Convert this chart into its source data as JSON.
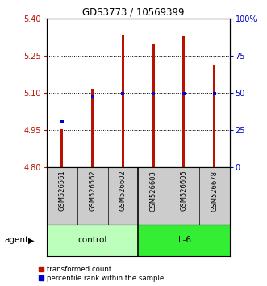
{
  "title": "GDS3773 / 10569399",
  "samples": [
    "GSM526561",
    "GSM526562",
    "GSM526602",
    "GSM526603",
    "GSM526605",
    "GSM526678"
  ],
  "bar_values": [
    4.953,
    5.115,
    5.335,
    5.295,
    5.33,
    5.215
  ],
  "bar_bottom": 4.8,
  "percentile_values": [
    4.985,
    5.088,
    5.098,
    5.098,
    5.097,
    5.096
  ],
  "ylim": [
    4.8,
    5.4
  ],
  "yticks_left": [
    4.8,
    4.95,
    5.1,
    5.25,
    5.4
  ],
  "yticks_right": [
    0,
    25,
    50,
    75,
    100
  ],
  "bar_color": "#bb1100",
  "percentile_color": "#0000cc",
  "bg_color": "#ffffff",
  "sample_bg": "#cccccc",
  "control_color": "#bbffbb",
  "il6_color": "#33ee33",
  "legend_items": [
    "transformed count",
    "percentile rank within the sample"
  ]
}
